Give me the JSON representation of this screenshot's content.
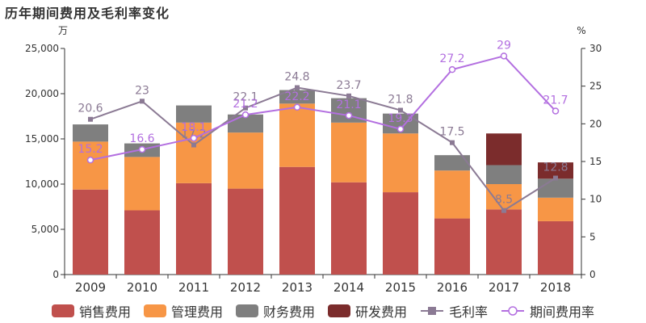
{
  "title": "历年期间费用及毛利率变化",
  "chart_data": {
    "type": "bar",
    "categories": [
      "2009",
      "2010",
      "2011",
      "2012",
      "2013",
      "2014",
      "2015",
      "2016",
      "2017",
      "2018"
    ],
    "left_axis": {
      "unit": "万",
      "ylim": [
        0,
        25000
      ],
      "ticks": [
        "0",
        "5,000",
        "10,000",
        "15,000",
        "20,000",
        "25,000"
      ],
      "tick_values": [
        0,
        5000,
        10000,
        15000,
        20000,
        25000
      ]
    },
    "right_axis": {
      "unit": "%",
      "ylim": [
        0,
        30
      ],
      "ticks": [
        "0",
        "5",
        "10",
        "15",
        "20",
        "25",
        "30"
      ],
      "tick_values": [
        0,
        5,
        10,
        15,
        20,
        25,
        30
      ]
    },
    "stacked_series": [
      {
        "name": "销售费用",
        "color": "#c0504d",
        "values": [
          9400,
          7100,
          10100,
          9500,
          11900,
          10200,
          9100,
          6200,
          7200,
          5900
        ]
      },
      {
        "name": "管理费用",
        "color": "#f79646",
        "values": [
          5300,
          5900,
          6700,
          6200,
          7000,
          6600,
          6500,
          5300,
          2800,
          2600
        ]
      },
      {
        "name": "财务费用",
        "color": "#7f7f7f",
        "values": [
          1900,
          1500,
          1900,
          2000,
          1500,
          2700,
          2200,
          1700,
          2100,
          2100
        ]
      },
      {
        "name": "研发费用",
        "color": "#7b2c2c",
        "values": [
          0,
          0,
          0,
          0,
          0,
          0,
          0,
          0,
          3500,
          1800
        ]
      }
    ],
    "line_series": [
      {
        "name": "毛利率",
        "color": "#8b7a94",
        "marker": "square",
        "values": [
          20.6,
          23,
          17.2,
          22.1,
          24.8,
          23.7,
          21.8,
          17.5,
          8.5,
          12.8
        ],
        "labels": [
          "20.6",
          "23",
          "17.2",
          "22.1",
          "24.8",
          "23.7",
          "21.8",
          "17.5",
          "8.5",
          "12.8"
        ]
      },
      {
        "name": "期间费用率",
        "color": "#b36fe0",
        "marker": "circle",
        "values": [
          15.2,
          16.6,
          18.1,
          21.2,
          22.2,
          21.1,
          19.3,
          27.2,
          29,
          21.7
        ],
        "labels": [
          "15.2",
          "16.6",
          "18.1",
          "21.2",
          "22.2",
          "21.1",
          "19.3",
          "27.2",
          "29",
          "21.7"
        ]
      }
    ],
    "legend_position": "bottom",
    "grid": false
  }
}
